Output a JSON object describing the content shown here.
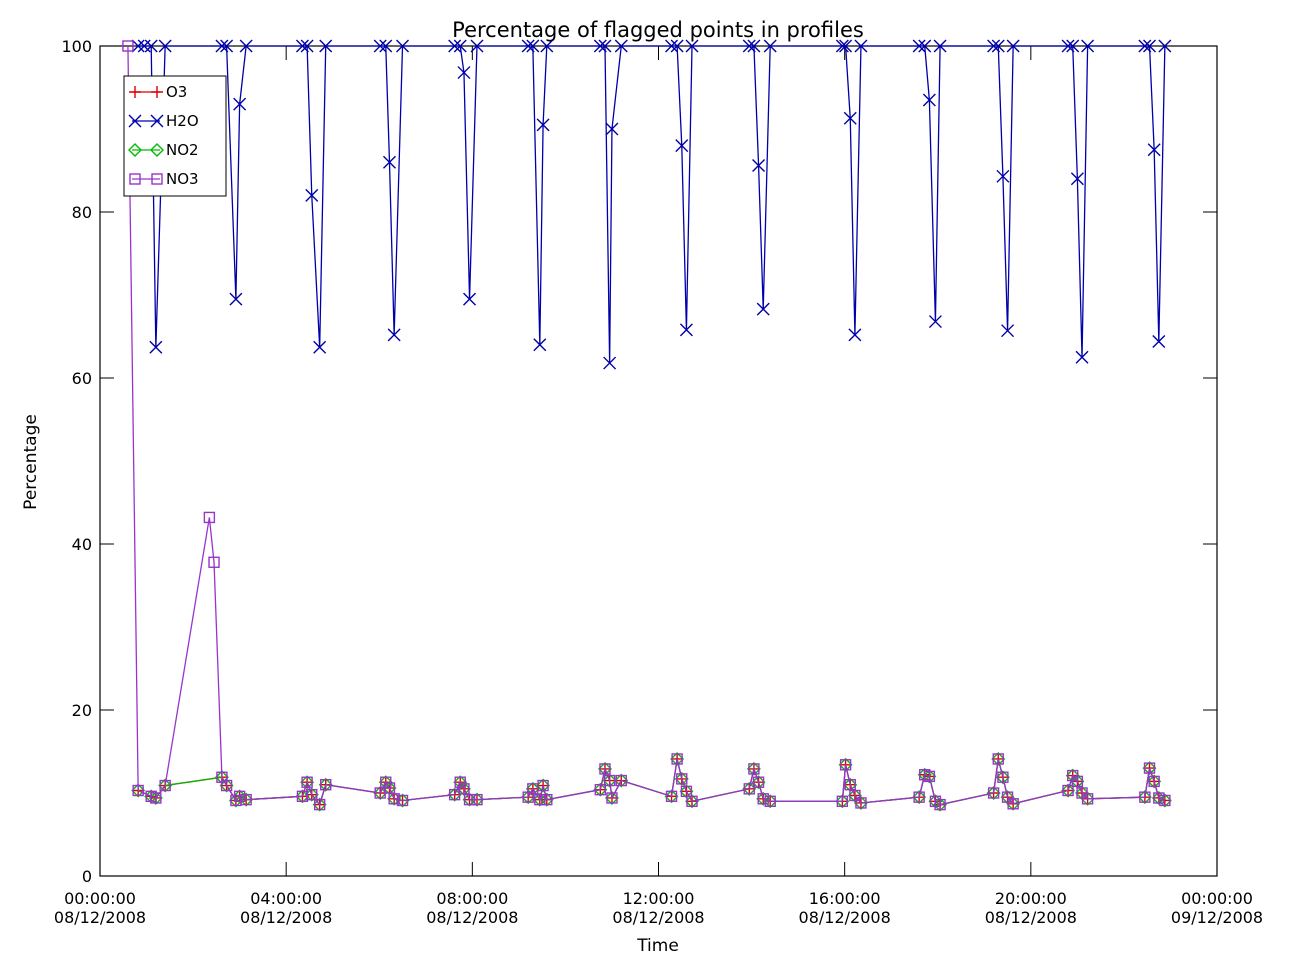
{
  "chart_data": {
    "type": "line",
    "title": "Percentage of flagged points in profiles",
    "xlabel": "Time",
    "ylabel": "Percentage",
    "ylim": [
      0,
      100
    ],
    "xlim_hours": [
      0,
      24
    ],
    "x_unit": "hours since 00:00:00 08/12/2008",
    "grid": false,
    "legend_position": "top-left (inside plot)",
    "yticks": [
      0,
      20,
      40,
      60,
      80,
      100
    ],
    "xticks": [
      {
        "hour": 0,
        "time": "00:00:00",
        "date": "08/12/2008"
      },
      {
        "hour": 4,
        "time": "04:00:00",
        "date": "08/12/2008"
      },
      {
        "hour": 8,
        "time": "08:00:00",
        "date": "08/12/2008"
      },
      {
        "hour": 12,
        "time": "12:00:00",
        "date": "08/12/2008"
      },
      {
        "hour": 16,
        "time": "16:00:00",
        "date": "08/12/2008"
      },
      {
        "hour": 20,
        "time": "20:00:00",
        "date": "08/12/2008"
      },
      {
        "hour": 24,
        "time": "00:00:00",
        "date": "09/12/2008"
      }
    ],
    "series": [
      {
        "name": "O3",
        "color": "#dd0000",
        "marker": "plus",
        "x": [
          0.82,
          1.1,
          1.2,
          1.4,
          2.62,
          2.72,
          2.92,
          3.0,
          3.14,
          4.35,
          4.45,
          4.55,
          4.72,
          4.85,
          6.02,
          6.14,
          6.22,
          6.32,
          6.5,
          7.62,
          7.74,
          7.82,
          7.94,
          8.1,
          9.2,
          9.3,
          9.45,
          9.52,
          9.6,
          10.75,
          10.85,
          10.95,
          11.0,
          11.2,
          12.28,
          12.4,
          12.5,
          12.6,
          12.72,
          13.95,
          14.05,
          14.15,
          14.25,
          14.4,
          15.95,
          16.02,
          16.12,
          16.22,
          16.35,
          17.6,
          17.72,
          17.82,
          17.95,
          18.05,
          19.2,
          19.3,
          19.4,
          19.5,
          19.62,
          20.8,
          20.9,
          21.0,
          21.1,
          21.22,
          22.45,
          22.55,
          22.65,
          22.75,
          22.88
        ],
        "values": [
          10.3,
          9.6,
          9.4,
          10.9,
          11.9,
          10.9,
          9.1,
          9.6,
          9.2,
          9.6,
          11.3,
          9.8,
          8.6,
          11.0,
          10.0,
          11.3,
          10.6,
          9.3,
          9.1,
          9.8,
          11.3,
          10.5,
          9.2,
          9.2,
          9.5,
          10.5,
          9.2,
          10.9,
          9.2,
          10.4,
          12.9,
          11.5,
          9.4,
          11.5,
          9.6,
          14.1,
          11.7,
          10.2,
          9.0,
          10.5,
          12.9,
          11.3,
          9.3,
          9.0,
          9.0,
          13.4,
          11.0,
          9.7,
          8.8,
          9.5,
          12.2,
          12.0,
          9.0,
          8.6,
          10.0,
          14.1,
          11.9,
          9.5,
          8.7,
          10.3,
          12.1,
          11.4,
          10.0,
          9.3,
          9.5,
          13.0,
          11.4,
          9.4,
          9.1
        ]
      },
      {
        "name": "H2O",
        "color": "#0000aa",
        "marker": "x",
        "x": [
          0.82,
          0.95,
          1.1,
          1.2,
          1.4,
          2.62,
          2.72,
          2.92,
          3.0,
          3.14,
          4.35,
          4.45,
          4.55,
          4.72,
          4.85,
          6.02,
          6.14,
          6.22,
          6.32,
          6.5,
          7.62,
          7.74,
          7.82,
          7.94,
          8.1,
          9.2,
          9.3,
          9.45,
          9.52,
          9.6,
          10.75,
          10.85,
          10.95,
          11.0,
          11.2,
          12.28,
          12.4,
          12.5,
          12.6,
          12.72,
          13.95,
          14.05,
          14.15,
          14.25,
          14.4,
          15.95,
          16.02,
          16.12,
          16.22,
          16.35,
          17.6,
          17.72,
          17.82,
          17.95,
          18.05,
          19.2,
          19.3,
          19.4,
          19.5,
          19.62,
          20.8,
          20.9,
          21.0,
          21.1,
          21.22,
          22.45,
          22.55,
          22.65,
          22.75,
          22.88
        ],
        "values": [
          100,
          100,
          100,
          63.7,
          100,
          100,
          100,
          69.5,
          93.0,
          100,
          100,
          100,
          82.0,
          63.7,
          100,
          100,
          100,
          86.0,
          65.2,
          100,
          100,
          100,
          96.8,
          69.5,
          100,
          100,
          100,
          64.0,
          90.5,
          100,
          100,
          100,
          61.8,
          90.0,
          100,
          100,
          100,
          88.0,
          65.8,
          100,
          100,
          100,
          85.6,
          68.3,
          100,
          100,
          100,
          91.3,
          65.2,
          100,
          100,
          100,
          93.5,
          66.8,
          100,
          100,
          100,
          84.3,
          65.7,
          100,
          100,
          100,
          84.0,
          62.5,
          100,
          100,
          100,
          87.5,
          64.4,
          100
        ]
      },
      {
        "name": "NO2",
        "color": "#00bb00",
        "marker": "diamond",
        "x": [
          0.82,
          1.1,
          1.2,
          1.4,
          2.62,
          2.72,
          2.92,
          3.0,
          3.14,
          4.35,
          4.45,
          4.55,
          4.72,
          4.85,
          6.02,
          6.14,
          6.22,
          6.32,
          6.5,
          7.62,
          7.74,
          7.82,
          7.94,
          8.1,
          9.2,
          9.3,
          9.45,
          9.52,
          9.6,
          10.75,
          10.85,
          10.95,
          11.0,
          11.2,
          12.28,
          12.4,
          12.5,
          12.6,
          12.72,
          13.95,
          14.05,
          14.15,
          14.25,
          14.4,
          15.95,
          16.02,
          16.12,
          16.22,
          16.35,
          17.6,
          17.72,
          17.82,
          17.95,
          18.05,
          19.2,
          19.3,
          19.4,
          19.5,
          19.62,
          20.8,
          20.9,
          21.0,
          21.1,
          21.22,
          22.45,
          22.55,
          22.65,
          22.75,
          22.88
        ],
        "values": [
          10.3,
          9.6,
          9.4,
          10.9,
          11.9,
          10.9,
          9.1,
          9.6,
          9.2,
          9.6,
          11.3,
          9.8,
          8.6,
          11.0,
          10.0,
          11.3,
          10.6,
          9.3,
          9.1,
          9.8,
          11.3,
          10.5,
          9.2,
          9.2,
          9.5,
          10.5,
          9.2,
          10.9,
          9.2,
          10.4,
          12.9,
          11.5,
          9.4,
          11.5,
          9.6,
          14.1,
          11.7,
          10.2,
          9.0,
          10.5,
          12.9,
          11.3,
          9.3,
          9.0,
          9.0,
          13.4,
          11.0,
          9.7,
          8.8,
          9.5,
          12.2,
          12.0,
          9.0,
          8.6,
          10.0,
          14.1,
          11.9,
          9.5,
          8.7,
          10.3,
          12.1,
          11.4,
          10.0,
          9.3,
          9.5,
          13.0,
          11.4,
          9.4,
          9.1
        ]
      },
      {
        "name": "NO3",
        "color": "#9933cc",
        "marker": "square",
        "x": [
          0.6,
          0.82,
          1.1,
          1.2,
          1.4,
          2.35,
          2.45,
          2.62,
          2.72,
          2.92,
          3.0,
          3.14,
          4.35,
          4.45,
          4.55,
          4.72,
          4.85,
          6.02,
          6.14,
          6.22,
          6.32,
          6.5,
          7.62,
          7.74,
          7.82,
          7.94,
          8.1,
          9.2,
          9.3,
          9.45,
          9.52,
          9.6,
          10.75,
          10.85,
          10.95,
          11.0,
          11.2,
          12.28,
          12.4,
          12.5,
          12.6,
          12.72,
          13.95,
          14.05,
          14.15,
          14.25,
          14.4,
          15.95,
          16.02,
          16.12,
          16.22,
          16.35,
          17.6,
          17.72,
          17.82,
          17.95,
          18.05,
          19.2,
          19.3,
          19.4,
          19.5,
          19.62,
          20.8,
          20.9,
          21.0,
          21.1,
          21.22,
          22.45,
          22.55,
          22.65,
          22.75,
          22.88
        ],
        "values": [
          100,
          10.3,
          9.6,
          9.4,
          10.9,
          43.2,
          37.8,
          11.9,
          10.9,
          9.1,
          9.6,
          9.2,
          9.6,
          11.3,
          9.8,
          8.6,
          11.0,
          10.0,
          11.3,
          10.6,
          9.3,
          9.1,
          9.8,
          11.3,
          10.5,
          9.2,
          9.2,
          9.5,
          10.5,
          9.2,
          10.9,
          9.2,
          10.4,
          12.9,
          11.5,
          9.4,
          11.5,
          9.6,
          14.1,
          11.7,
          10.2,
          9.0,
          10.5,
          12.9,
          11.3,
          9.3,
          9.0,
          9.0,
          13.4,
          11.0,
          9.7,
          8.8,
          9.5,
          12.2,
          12.0,
          9.0,
          8.6,
          10.0,
          14.1,
          11.9,
          9.5,
          8.7,
          10.3,
          12.1,
          11.4,
          10.0,
          9.3,
          9.5,
          13.0,
          11.4,
          9.4,
          9.1
        ]
      }
    ]
  }
}
